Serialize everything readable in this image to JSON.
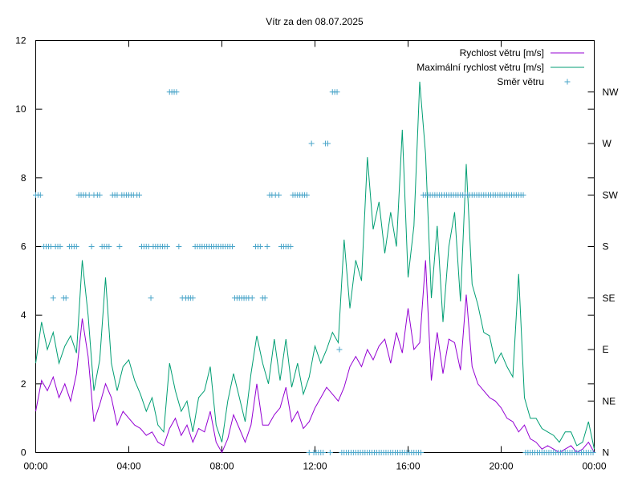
{
  "chart_data": {
    "type": "line",
    "title": "Vítr za den 08.07.2025",
    "x_ticks": [
      "00:00",
      "04:00",
      "08:00",
      "12:00",
      "16:00",
      "20:00",
      "00:00"
    ],
    "xlim_hours": [
      0,
      24
    ],
    "ylim": [
      0,
      12
    ],
    "y_ticks": [
      "0",
      "2",
      "4",
      "6",
      "8",
      "10",
      "12"
    ],
    "y2_ticks": [
      "N",
      "NE",
      "E",
      "SE",
      "S",
      "SW",
      "W",
      "NW"
    ],
    "y2_tick_values": [
      0,
      1.5,
      3,
      4.5,
      6,
      7.5,
      9,
      10.5
    ],
    "legend_position": "top-right",
    "grid": false,
    "series": [
      {
        "name": "Rychlost větru [m/s]",
        "color": "#9400d3",
        "x_hours": [
          0.0,
          0.25,
          0.5,
          0.75,
          1.0,
          1.25,
          1.5,
          1.75,
          2.0,
          2.25,
          2.5,
          2.75,
          3.0,
          3.25,
          3.5,
          3.75,
          4.0,
          4.25,
          4.5,
          4.75,
          5.0,
          5.25,
          5.5,
          5.75,
          6.0,
          6.25,
          6.5,
          6.75,
          7.0,
          7.25,
          7.5,
          7.75,
          8.0,
          8.25,
          8.5,
          8.75,
          9.0,
          9.25,
          9.5,
          9.75,
          10.0,
          10.25,
          10.5,
          10.75,
          11.0,
          11.25,
          11.5,
          11.75,
          12.0,
          12.25,
          12.5,
          12.75,
          13.0,
          13.25,
          13.5,
          13.75,
          14.0,
          14.25,
          14.5,
          14.75,
          15.0,
          15.25,
          15.5,
          15.75,
          16.0,
          16.25,
          16.5,
          16.75,
          17.0,
          17.25,
          17.5,
          17.75,
          18.0,
          18.25,
          18.5,
          18.75,
          19.0,
          19.25,
          19.5,
          19.75,
          20.0,
          20.25,
          20.5,
          20.75,
          21.0,
          21.25,
          21.5,
          21.75,
          22.0,
          22.25,
          22.5,
          22.75,
          23.0,
          23.25,
          23.5,
          23.75,
          24.0
        ],
        "values": [
          1.2,
          2.1,
          1.8,
          2.2,
          1.6,
          2.0,
          1.5,
          2.3,
          3.9,
          2.8,
          0.9,
          1.4,
          2.0,
          1.6,
          0.8,
          1.2,
          1.0,
          0.8,
          0.7,
          0.5,
          0.6,
          0.3,
          0.2,
          0.7,
          1.0,
          0.5,
          0.8,
          0.3,
          0.7,
          0.6,
          1.2,
          0.3,
          0.0,
          0.4,
          1.1,
          0.7,
          0.3,
          0.8,
          2.0,
          0.8,
          0.8,
          1.1,
          1.3,
          1.9,
          0.9,
          1.2,
          0.7,
          0.9,
          1.3,
          1.6,
          1.9,
          1.7,
          1.5,
          1.9,
          2.5,
          2.8,
          2.5,
          3.0,
          2.7,
          3.1,
          3.3,
          2.6,
          3.5,
          2.9,
          4.2,
          3.0,
          3.2,
          5.6,
          2.1,
          3.5,
          2.3,
          3.3,
          3.2,
          2.4,
          4.6,
          2.5,
          2.0,
          1.8,
          1.6,
          1.5,
          1.3,
          1.0,
          0.9,
          0.6,
          0.8,
          0.4,
          0.3,
          0.1,
          0.2,
          0.1,
          0.0,
          0.1,
          0.2,
          0.0,
          0.1,
          0.3,
          0.0
        ]
      },
      {
        "name": "Maximální rychlost větru [m/s]",
        "color": "#009e73",
        "x_hours": [
          0.0,
          0.25,
          0.5,
          0.75,
          1.0,
          1.25,
          1.5,
          1.75,
          2.0,
          2.25,
          2.5,
          2.75,
          3.0,
          3.25,
          3.5,
          3.75,
          4.0,
          4.25,
          4.5,
          4.75,
          5.0,
          5.25,
          5.5,
          5.75,
          6.0,
          6.25,
          6.5,
          6.75,
          7.0,
          7.25,
          7.5,
          7.75,
          8.0,
          8.25,
          8.5,
          8.75,
          9.0,
          9.25,
          9.5,
          9.75,
          10.0,
          10.25,
          10.5,
          10.75,
          11.0,
          11.25,
          11.5,
          11.75,
          12.0,
          12.25,
          12.5,
          12.75,
          13.0,
          13.25,
          13.5,
          13.75,
          14.0,
          14.25,
          14.5,
          14.75,
          15.0,
          15.25,
          15.5,
          15.75,
          16.0,
          16.25,
          16.5,
          16.75,
          17.0,
          17.25,
          17.5,
          17.75,
          18.0,
          18.25,
          18.5,
          18.75,
          19.0,
          19.25,
          19.5,
          19.75,
          20.0,
          20.25,
          20.5,
          20.75,
          21.0,
          21.25,
          21.5,
          21.75,
          22.0,
          22.25,
          22.5,
          22.75,
          23.0,
          23.25,
          23.5,
          23.75,
          24.0
        ],
        "values": [
          2.6,
          3.8,
          3.0,
          3.5,
          2.6,
          3.1,
          3.4,
          2.9,
          5.6,
          4.0,
          1.8,
          2.7,
          5.1,
          2.6,
          1.8,
          2.5,
          2.7,
          2.1,
          1.7,
          1.2,
          1.6,
          0.8,
          0.6,
          2.6,
          1.8,
          1.2,
          1.5,
          0.6,
          1.6,
          1.8,
          2.5,
          0.8,
          0.3,
          1.5,
          2.3,
          1.6,
          0.9,
          2.3,
          3.4,
          2.6,
          2.0,
          3.3,
          2.1,
          3.3,
          1.9,
          2.6,
          1.7,
          2.2,
          3.1,
          2.6,
          3.0,
          3.5,
          3.2,
          6.2,
          4.2,
          5.6,
          5.0,
          8.6,
          6.5,
          7.3,
          5.8,
          7.0,
          6.0,
          9.4,
          5.1,
          6.6,
          10.8,
          8.7,
          4.5,
          6.6,
          3.8,
          6.0,
          7.0,
          4.4,
          8.4,
          4.9,
          4.3,
          3.5,
          3.4,
          2.6,
          2.9,
          2.5,
          2.2,
          5.2,
          1.6,
          1.0,
          1.0,
          0.7,
          0.6,
          0.5,
          0.3,
          0.6,
          0.6,
          0.2,
          0.3,
          0.9,
          0.1
        ]
      },
      {
        "name": "Směr větru",
        "color": "#4aa5c9",
        "x_hours": [
          0.0,
          0.1,
          0.2,
          0.35,
          0.45,
          0.55,
          0.65,
          0.75,
          0.85,
          0.95,
          1.05,
          1.2,
          1.3,
          1.45,
          1.55,
          1.65,
          1.75,
          1.85,
          1.95,
          2.05,
          2.15,
          2.3,
          2.4,
          2.5,
          2.65,
          2.75,
          2.85,
          2.95,
          3.05,
          3.15,
          3.3,
          3.4,
          3.5,
          3.6,
          3.7,
          3.8,
          3.9,
          4.0,
          4.1,
          4.2,
          4.35,
          4.45,
          4.55,
          4.65,
          4.75,
          4.85,
          4.95,
          5.05,
          5.15,
          5.25,
          5.35,
          5.45,
          5.55,
          5.65,
          5.75,
          5.85,
          5.95,
          6.05,
          6.15,
          6.3,
          6.45,
          6.55,
          6.65,
          6.75,
          6.85,
          6.95,
          7.05,
          7.15,
          7.25,
          7.35,
          7.45,
          7.55,
          7.65,
          7.75,
          7.85,
          7.95,
          8.05,
          8.15,
          8.25,
          8.35,
          8.45,
          8.55,
          8.65,
          8.75,
          8.85,
          8.95,
          9.05,
          9.15,
          9.3,
          9.45,
          9.55,
          9.65,
          9.75,
          9.85,
          9.95,
          10.05,
          10.15,
          10.3,
          10.45,
          10.55,
          10.65,
          10.75,
          10.85,
          10.95,
          11.05,
          11.15,
          11.25,
          11.35,
          11.45,
          11.55,
          11.65,
          11.75,
          11.85,
          11.95,
          12.05,
          12.15,
          12.25,
          12.35,
          12.45,
          12.55,
          12.65,
          12.75,
          12.85,
          12.95,
          13.05,
          13.15,
          13.25,
          13.35,
          13.45,
          13.55,
          13.65,
          13.75,
          13.85,
          13.95,
          14.05,
          14.15,
          14.25,
          14.35,
          14.45,
          14.55,
          14.65,
          14.75,
          14.85,
          14.95,
          15.05,
          15.15,
          15.25,
          15.35,
          15.45,
          15.55,
          15.65,
          15.75,
          15.85,
          15.95,
          16.05,
          16.15,
          16.25,
          16.35,
          16.45,
          16.55,
          16.65,
          16.75,
          16.85,
          16.95,
          17.05,
          17.15,
          17.25,
          17.35,
          17.45,
          17.55,
          17.65,
          17.75,
          17.85,
          17.95,
          18.05,
          18.15,
          18.25,
          18.35,
          18.45,
          18.55,
          18.65,
          18.75,
          18.85,
          18.95,
          19.05,
          19.15,
          19.25,
          19.35,
          19.45,
          19.55,
          19.65,
          19.75,
          19.85,
          19.95,
          20.05,
          20.15,
          20.25,
          20.35,
          20.45,
          20.55,
          20.65,
          20.75,
          20.85,
          20.95,
          21.05,
          21.15,
          21.25,
          21.35,
          21.45,
          21.55,
          21.65,
          21.75,
          21.85,
          21.95,
          22.05,
          22.15,
          22.25,
          22.35,
          22.45,
          22.55,
          22.65,
          22.75,
          22.85,
          22.95,
          23.05,
          23.15,
          23.25,
          23.35,
          23.45,
          23.55,
          23.65,
          23.75,
          23.85,
          23.95
        ],
        "values": [
          7.5,
          7.5,
          7.5,
          6.0,
          6.0,
          6.0,
          6.0,
          4.5,
          6.0,
          6.0,
          6.0,
          4.5,
          4.5,
          6.0,
          6.0,
          6.0,
          6.0,
          7.5,
          7.5,
          7.5,
          7.5,
          7.5,
          6.0,
          7.5,
          7.5,
          7.5,
          6.0,
          6.0,
          6.0,
          6.0,
          7.5,
          7.5,
          7.5,
          6.0,
          7.5,
          7.5,
          7.5,
          7.5,
          7.5,
          7.5,
          7.5,
          7.5,
          6.0,
          6.0,
          6.0,
          6.0,
          4.5,
          6.0,
          6.0,
          6.0,
          6.0,
          6.0,
          6.0,
          6.0,
          10.5,
          10.5,
          10.5,
          10.5,
          6.0,
          4.5,
          4.5,
          4.5,
          4.5,
          4.5,
          6.0,
          6.0,
          6.0,
          6.0,
          6.0,
          6.0,
          6.0,
          6.0,
          6.0,
          6.0,
          6.0,
          6.0,
          6.0,
          6.0,
          6.0,
          6.0,
          6.0,
          4.5,
          4.5,
          4.5,
          4.5,
          4.5,
          4.5,
          4.5,
          4.5,
          6.0,
          6.0,
          6.0,
          4.5,
          4.5,
          6.0,
          7.5,
          7.5,
          7.5,
          7.5,
          6.0,
          6.0,
          6.0,
          6.0,
          6.0,
          7.5,
          7.5,
          7.5,
          7.5,
          7.5,
          7.5,
          7.5,
          0.0,
          9.0,
          0.0,
          0.0,
          0.0,
          0.0,
          0.0,
          9.0,
          9.0,
          0.0,
          10.5,
          10.5,
          10.5,
          3.0,
          0.0,
          0.0,
          0.0,
          0.0,
          0.0,
          0.0,
          0.0,
          0.0,
          0.0,
          0.0,
          0.0,
          0.0,
          0.0,
          0.0,
          0.0,
          0.0,
          0.0,
          0.0,
          0.0,
          0.0,
          0.0,
          0.0,
          0.0,
          0.0,
          0.0,
          0.0,
          0.0,
          0.0,
          0.0,
          0.0,
          0.0,
          0.0,
          0.0,
          0.0,
          0.0,
          7.5,
          7.5,
          7.5,
          7.5,
          7.5,
          7.5,
          7.5,
          7.5,
          7.5,
          7.5,
          7.5,
          7.5,
          7.5,
          7.5,
          7.5,
          7.5,
          7.5,
          7.5,
          7.5,
          7.5,
          7.5,
          7.5,
          7.5,
          7.5,
          7.5,
          7.5,
          7.5,
          7.5,
          7.5,
          7.5,
          7.5,
          7.5,
          7.5,
          7.5,
          7.5,
          7.5,
          7.5,
          7.5,
          7.5,
          7.5,
          7.5,
          7.5,
          7.5,
          7.5,
          0.0,
          0.0,
          0.0,
          0.0,
          0.0,
          0.0,
          0.0,
          0.0,
          0.0,
          0.0,
          0.0,
          0.0,
          0.0,
          0.0,
          0.0,
          0.0,
          0.0,
          0.0,
          0.0,
          0.0,
          0.0,
          0.0,
          0.0,
          0.0,
          0.0,
          0.0,
          0.0,
          0.0,
          0.0,
          0.0
        ]
      }
    ]
  }
}
